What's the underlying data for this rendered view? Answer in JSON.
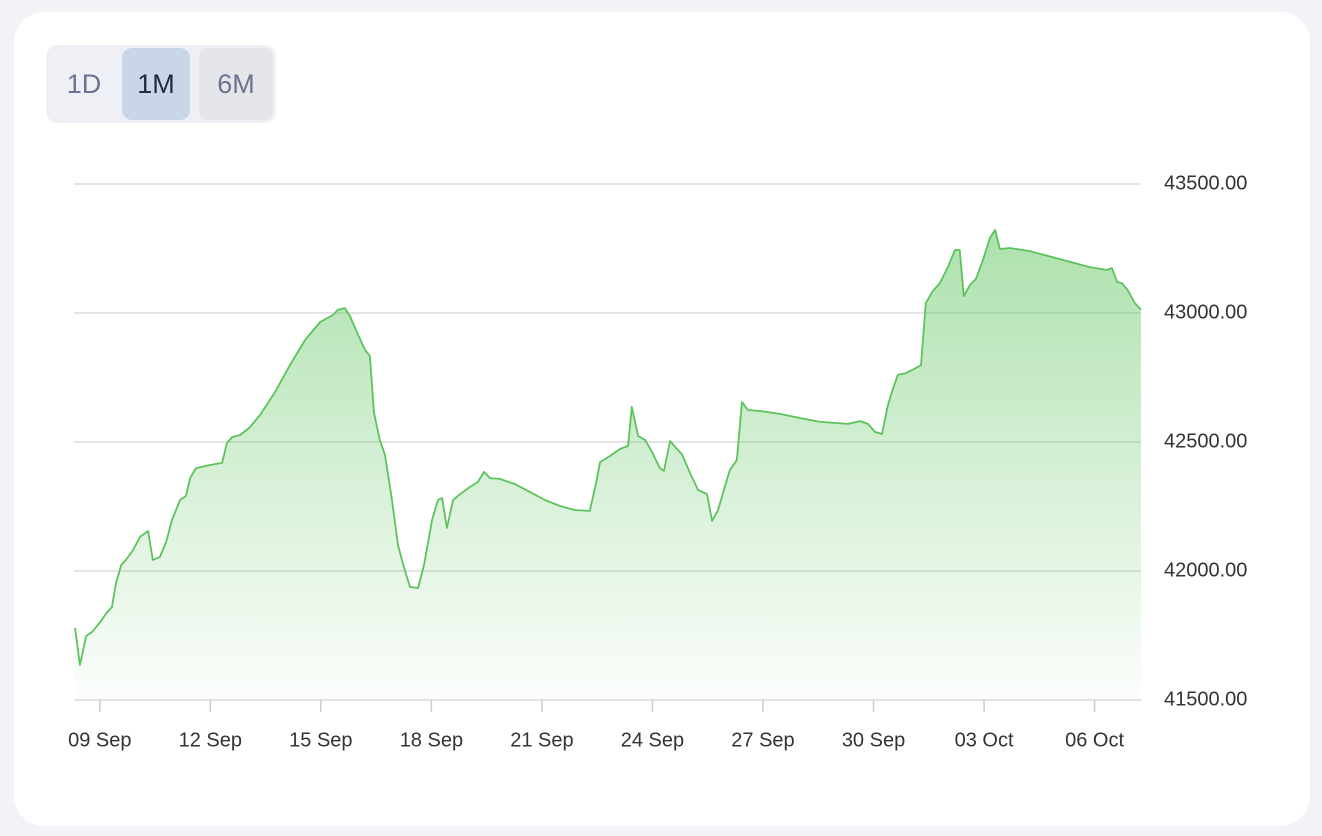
{
  "range_buttons": [
    {
      "label": "1D",
      "selected": false
    },
    {
      "label": "1M",
      "selected": true
    },
    {
      "label": "6M",
      "selected": false
    }
  ],
  "chart_data": {
    "type": "area",
    "color": "#5cc35c",
    "x": [
      8.33,
      8.46,
      8.63,
      8.79,
      9.01,
      9.2,
      9.33,
      9.44,
      9.58,
      9.71,
      9.9,
      10.09,
      10.31,
      10.44,
      10.63,
      10.8,
      10.96,
      11.18,
      11.34,
      11.45,
      11.61,
      11.99,
      12.32,
      12.45,
      12.59,
      12.81,
      13.08,
      13.35,
      13.76,
      14.16,
      14.57,
      14.98,
      15.33,
      15.46,
      15.65,
      15.79,
      16.01,
      16.2,
      16.33,
      16.44,
      16.6,
      16.74,
      16.93,
      17.09,
      17.26,
      17.42,
      17.64,
      17.8,
      18.02,
      18.18,
      18.29,
      18.42,
      18.59,
      18.78,
      19.05,
      19.26,
      19.43,
      19.59,
      19.86,
      20.27,
      20.68,
      21.08,
      21.49,
      21.9,
      22.3,
      22.47,
      22.58,
      22.85,
      23.12,
      23.34,
      23.44,
      23.61,
      23.8,
      23.99,
      24.2,
      24.31,
      24.48,
      24.64,
      24.8,
      25.02,
      25.24,
      25.48,
      25.62,
      25.78,
      25.94,
      26.1,
      26.29,
      26.43,
      26.59,
      26.92,
      27.46,
      28.0,
      28.55,
      29.31,
      29.63,
      29.85,
      30.04,
      30.23,
      30.39,
      30.5,
      30.66,
      30.88,
      31.1,
      31.29,
      31.42,
      31.61,
      31.8,
      32.02,
      32.21,
      32.34,
      32.45,
      32.62,
      32.78,
      32.97,
      33.16,
      33.3,
      33.43,
      33.7,
      34.24,
      35.06,
      35.87,
      36.33,
      36.47,
      36.61,
      36.74,
      36.9,
      37.09,
      37.26
    ],
    "values": [
      41779,
      41636,
      41748,
      41764,
      41802,
      41841,
      41860,
      41953,
      42023,
      42043,
      42081,
      42132,
      42155,
      42043,
      42054,
      42112,
      42198,
      42275,
      42291,
      42360,
      42399,
      42411,
      42419,
      42496,
      42519,
      42527,
      42558,
      42605,
      42694,
      42798,
      42895,
      42965,
      42992,
      43012,
      43019,
      42988,
      42915,
      42857,
      42833,
      42616,
      42508,
      42450,
      42275,
      42101,
      42012,
      41938,
      41934,
      42023,
      42198,
      42275,
      42283,
      42167,
      42275,
      42298,
      42326,
      42345,
      42384,
      42360,
      42357,
      42337,
      42306,
      42275,
      42252,
      42236,
      42233,
      42341,
      42422,
      42446,
      42473,
      42485,
      42636,
      42523,
      42508,
      42461,
      42399,
      42388,
      42504,
      42477,
      42453,
      42380,
      42314,
      42298,
      42194,
      42236,
      42314,
      42391,
      42430,
      42655,
      42624,
      42620,
      42609,
      42593,
      42578,
      42570,
      42581,
      42570,
      42539,
      42531,
      42643,
      42694,
      42760,
      42767,
      42783,
      42798,
      43039,
      43085,
      43116,
      43178,
      43244,
      43244,
      43066,
      43109,
      43132,
      43205,
      43291,
      43322,
      43248,
      43252,
      43240,
      43209,
      43178,
      43167,
      43174,
      43120,
      43116,
      43089,
      43039,
      43012
    ],
    "xlim": [
      8.3,
      37.26
    ],
    "xticks": [
      {
        "value": 9,
        "label": "09 Sep"
      },
      {
        "value": 12,
        "label": "12 Sep"
      },
      {
        "value": 15,
        "label": "15 Sep"
      },
      {
        "value": 18,
        "label": "18 Sep"
      },
      {
        "value": 21,
        "label": "21 Sep"
      },
      {
        "value": 24,
        "label": "24 Sep"
      },
      {
        "value": 27,
        "label": "27 Sep"
      },
      {
        "value": 30,
        "label": "30 Sep"
      },
      {
        "value": 33,
        "label": "03 Oct"
      },
      {
        "value": 36,
        "label": "06 Oct"
      }
    ],
    "ylim": [
      41500,
      43500
    ],
    "yticks": [
      {
        "value": 41500,
        "label": "41500.00"
      },
      {
        "value": 42000,
        "label": "42000.00"
      },
      {
        "value": 42500,
        "label": "42500.00"
      },
      {
        "value": 43000,
        "label": "43000.00"
      },
      {
        "value": 43500,
        "label": "43500.00"
      }
    ],
    "grid": true
  }
}
